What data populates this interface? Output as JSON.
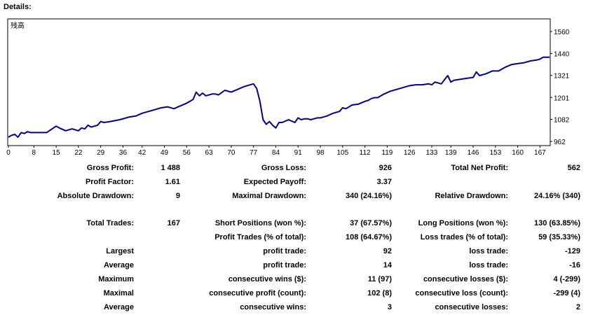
{
  "header": {
    "title": "Details:"
  },
  "chart_data": {
    "type": "line",
    "title": "",
    "legend_label": "残高",
    "xlabel": "",
    "ylabel": "",
    "x_ticks": [
      "0",
      "8",
      "15",
      "22",
      "29",
      "36",
      "42",
      "49",
      "56",
      "63",
      "70",
      "77",
      "84",
      "91",
      "98",
      "105",
      "112",
      "119",
      "126",
      "133",
      "139",
      "146",
      "153",
      "160",
      "167"
    ],
    "y_ticks": [
      "1560",
      "1440",
      "1321",
      "1201",
      "1082",
      "962"
    ],
    "xlim": [
      0,
      170
    ],
    "ylim": [
      962,
      1560
    ],
    "grid": false,
    "line_color": "#00008b",
    "x": [
      0,
      1,
      2,
      3,
      4,
      5,
      6,
      7,
      8,
      9,
      10,
      12,
      15,
      16,
      18,
      20,
      22,
      23,
      24,
      25,
      26,
      28,
      29,
      30,
      32,
      35,
      38,
      40,
      42,
      45,
      48,
      50,
      52,
      54,
      56,
      58,
      59,
      60,
      61,
      62,
      63,
      64,
      65,
      66,
      68,
      70,
      72,
      74,
      76,
      77,
      78,
      79,
      80,
      81,
      82,
      83,
      84,
      85,
      86,
      88,
      90,
      91,
      92,
      93,
      94,
      95,
      96,
      97,
      98,
      100,
      102,
      104,
      105,
      106,
      108,
      110,
      112,
      113,
      114,
      115,
      116,
      118,
      120,
      122,
      124,
      126,
      128,
      130,
      132,
      133,
      134,
      136,
      138,
      139,
      140,
      142,
      144,
      146,
      147,
      148,
      150,
      152,
      154,
      156,
      158,
      160,
      162,
      164,
      166,
      167,
      168,
      170
    ],
    "y": [
      985,
      995,
      1000,
      985,
      1010,
      1005,
      1015,
      1010,
      1010,
      1010,
      1010,
      1010,
      1045,
      1035,
      1020,
      1030,
      1020,
      1035,
      1030,
      1050,
      1040,
      1050,
      1070,
      1065,
      1070,
      1080,
      1095,
      1100,
      1115,
      1130,
      1145,
      1150,
      1140,
      1155,
      1170,
      1190,
      1230,
      1210,
      1225,
      1210,
      1215,
      1220,
      1220,
      1215,
      1240,
      1230,
      1245,
      1260,
      1270,
      1275,
      1250,
      1180,
      1080,
      1055,
      1070,
      1050,
      1035,
      1065,
      1065,
      1080,
      1065,
      1090,
      1080,
      1085,
      1085,
      1080,
      1085,
      1090,
      1090,
      1100,
      1115,
      1125,
      1145,
      1140,
      1160,
      1165,
      1180,
      1185,
      1195,
      1200,
      1200,
      1220,
      1235,
      1245,
      1255,
      1265,
      1270,
      1270,
      1275,
      1270,
      1285,
      1275,
      1320,
      1285,
      1295,
      1300,
      1305,
      1310,
      1340,
      1320,
      1330,
      1345,
      1345,
      1365,
      1380,
      1385,
      1390,
      1400,
      1405,
      1410,
      1420,
      1420
    ]
  },
  "stats": {
    "gross_profit_label": "Gross Profit:",
    "gross_profit_value": "1 488",
    "gross_loss_label": "Gross Loss:",
    "gross_loss_value": "926",
    "total_net_profit_label": "Total Net Profit:",
    "total_net_profit_value": "562",
    "profit_factor_label": "Profit Factor:",
    "profit_factor_value": "1.61",
    "expected_payoff_label": "Expected Payoff:",
    "expected_payoff_value": "3.37",
    "absolute_drawdown_label": "Absolute Drawdown:",
    "absolute_drawdown_value": "9",
    "maximal_drawdown_label": "Maximal Drawdown:",
    "maximal_drawdown_value": "340 (24.16%)",
    "relative_drawdown_label": "Relative Drawdown:",
    "relative_drawdown_value": "24.16% (340)",
    "total_trades_label": "Total Trades:",
    "total_trades_value": "167",
    "short_positions_label": "Short Positions (won %):",
    "short_positions_value": "37 (67.57%)",
    "long_positions_label": "Long Positions (won %):",
    "long_positions_value": "130 (63.85%)",
    "profit_trades_label": "Profit Trades (% of total):",
    "profit_trades_value": "108 (64.67%)",
    "loss_trades_label": "Loss trades (% of total):",
    "loss_trades_value": "59 (35.33%)",
    "largest_label": "Largest",
    "largest_profit_label": "profit trade:",
    "largest_profit_value": "92",
    "largest_loss_label": "loss trade:",
    "largest_loss_value": "-129",
    "average_label": "Average",
    "average_profit_label": "profit trade:",
    "average_profit_value": "14",
    "average_loss_label": "loss trade:",
    "average_loss_value": "-16",
    "maximum_label": "Maximum",
    "max_cons_wins_label": "consecutive wins ($):",
    "max_cons_wins_value": "11 (97)",
    "max_cons_losses_label": "consecutive losses ($):",
    "max_cons_losses_value": "4 (-299)",
    "maximal_label": "Maximal",
    "maximal_cons_profit_label": "consecutive profit (count):",
    "maximal_cons_profit_value": "102 (8)",
    "maximal_cons_loss_label": "consecutive loss (count):",
    "maximal_cons_loss_value": "-299 (4)",
    "average2_label": "Average",
    "avg_cons_wins_label": "consecutive wins:",
    "avg_cons_wins_value": "3",
    "avg_cons_losses_label": "consecutive losses:",
    "avg_cons_losses_value": "2"
  }
}
